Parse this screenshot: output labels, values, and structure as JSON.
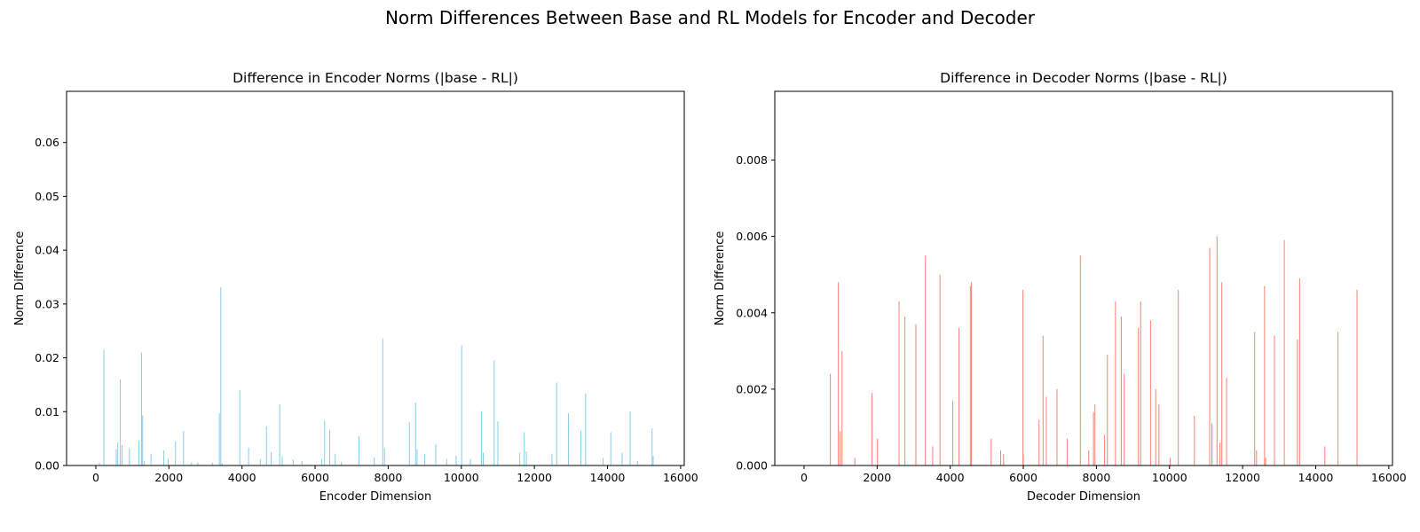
{
  "figure": {
    "title": "Norm Differences Between Base and RL Models for Encoder and Decoder"
  },
  "chart_data": [
    {
      "type": "bar",
      "title": "Difference in Encoder Norms (|base - RL|)",
      "xlabel": "Encoder Dimension",
      "ylabel": "Norm Difference",
      "xlim": [
        -800,
        16100
      ],
      "ylim": [
        0,
        0.0695
      ],
      "xticks": [
        0,
        2000,
        4000,
        6000,
        8000,
        10000,
        12000,
        14000,
        16000
      ],
      "yticks": [
        0.0,
        0.01,
        0.02,
        0.03,
        0.04,
        0.05,
        0.06
      ],
      "ytick_labels": [
        "0.00",
        "0.01",
        "0.02",
        "0.03",
        "0.04",
        "0.05",
        "0.06"
      ],
      "color": "#87ceeb",
      "grid": false,
      "x": [
        100,
        220,
        560,
        600,
        670,
        720,
        920,
        1180,
        1250,
        1280,
        1330,
        1510,
        1860,
        1980,
        2180,
        2400,
        2620,
        2790,
        3190,
        3380,
        3420,
        3460,
        3940,
        4180,
        4500,
        4670,
        4800,
        5030,
        5100,
        5400,
        5640,
        6180,
        6260,
        6400,
        6550,
        6720,
        7200,
        7620,
        7850,
        7900,
        8580,
        8750,
        8790,
        9000,
        9300,
        9600,
        9860,
        10010,
        10250,
        10550,
        10600,
        10900,
        11000,
        11600,
        11720,
        11780,
        12480,
        12610,
        12930,
        13270,
        13400,
        13880,
        14090,
        14400,
        14620,
        14820,
        15220,
        15250
      ],
      "values": [
        0.0005,
        0.0215,
        0.003,
        0.0043,
        0.016,
        0.0038,
        0.0032,
        0.0046,
        0.021,
        0.0093,
        0.0008,
        0.0022,
        0.0028,
        0.0012,
        0.0045,
        0.0064,
        0.0006,
        0.0006,
        0.0005,
        0.0097,
        0.0331,
        0.0004,
        0.014,
        0.0033,
        0.0012,
        0.0073,
        0.0025,
        0.0114,
        0.0017,
        0.0011,
        0.0008,
        0.0012,
        0.0083,
        0.0066,
        0.0022,
        0.0007,
        0.0055,
        0.0015,
        0.0236,
        0.0032,
        0.008,
        0.0117,
        0.003,
        0.0021,
        0.004,
        0.0012,
        0.0018,
        0.0224,
        0.0012,
        0.0101,
        0.0024,
        0.0195,
        0.0082,
        0.0024,
        0.0062,
        0.0026,
        0.0022,
        0.0154,
        0.0097,
        0.0064,
        0.0134,
        0.0014,
        0.0062,
        0.0024,
        0.0101,
        0.0008,
        0.0069,
        0.0018
      ]
    },
    {
      "type": "bar",
      "title": "Difference in Decoder Norms (|base - RL|)",
      "xlabel": "Decoder Dimension",
      "ylabel": "Norm Difference",
      "xlim": [
        -800,
        16100
      ],
      "ylim": [
        0,
        0.0098
      ],
      "xticks": [
        0,
        2000,
        4000,
        6000,
        8000,
        10000,
        12000,
        14000,
        16000
      ],
      "yticks": [
        0.0,
        0.002,
        0.004,
        0.006,
        0.008
      ],
      "ytick_labels": [
        "0.000",
        "0.002",
        "0.004",
        "0.006",
        "0.008"
      ],
      "color": "#fa8072",
      "grid": false,
      "x": [
        720,
        940,
        990,
        1040,
        1390,
        1860,
        2010,
        2600,
        2760,
        3060,
        3320,
        3520,
        3720,
        4070,
        4240,
        4550,
        4580,
        5120,
        5380,
        5460,
        5990,
        6000,
        6430,
        6540,
        6630,
        6920,
        7200,
        7560,
        7790,
        7920,
        7960,
        8220,
        8300,
        8520,
        8680,
        8760,
        9150,
        9210,
        9480,
        9620,
        9710,
        10020,
        10240,
        10680,
        11100,
        11160,
        11300,
        11380,
        11430,
        11560,
        12330,
        12380,
        12600,
        12630,
        12870,
        13140,
        13500,
        13560,
        14250,
        14610,
        15130
      ],
      "values": [
        0.0024,
        0.0048,
        0.0009,
        0.003,
        0.0002,
        0.0019,
        0.0007,
        0.0043,
        0.0039,
        0.0037,
        0.0055,
        0.0005,
        0.005,
        0.0017,
        0.0036,
        0.0047,
        0.0048,
        0.0007,
        0.0004,
        0.0003,
        0.0046,
        0.0003,
        0.0012,
        0.0034,
        0.0018,
        0.002,
        0.0007,
        0.0055,
        0.0004,
        0.0014,
        0.0016,
        0.0008,
        0.0029,
        0.0043,
        0.0039,
        0.0024,
        0.0036,
        0.0043,
        0.0038,
        0.002,
        0.0016,
        0.0002,
        0.0046,
        0.0013,
        0.0057,
        0.0011,
        0.006,
        0.0006,
        0.0048,
        0.0023,
        0.0035,
        0.0004,
        0.0047,
        0.0002,
        0.0034,
        0.0059,
        0.0033,
        0.0049,
        0.0005,
        0.0035,
        0.0046
      ]
    }
  ]
}
